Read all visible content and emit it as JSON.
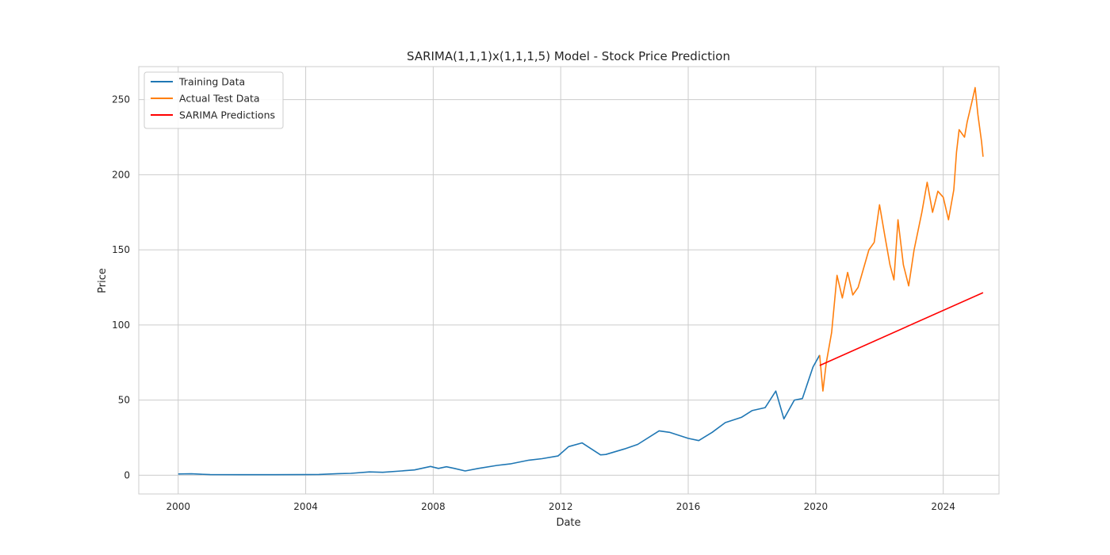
{
  "chart_data": {
    "type": "line",
    "title": "SARIMA(1,1,1)x(1,1,1,5) Model - Stock Price Prediction",
    "xlabel": "Date",
    "ylabel": "Price",
    "xlim": [
      "1998-10-06",
      "2025-10-01"
    ],
    "ylim": [
      -12.5,
      272
    ],
    "xticks": [
      "2000",
      "2004",
      "2008",
      "2012",
      "2016",
      "2020",
      "2024"
    ],
    "yticks": [
      "0",
      "50",
      "100",
      "150",
      "200",
      "250"
    ],
    "grid": true,
    "legend": "top-left",
    "series": [
      {
        "name": "Training Data",
        "color": "#1f77b4",
        "points": [
          [
            "2000-01-01",
            0.8
          ],
          [
            "2000-06-01",
            0.9
          ],
          [
            "2001-01-01",
            0.4
          ],
          [
            "2002-01-01",
            0.3
          ],
          [
            "2003-01-01",
            0.3
          ],
          [
            "2004-01-01",
            0.4
          ],
          [
            "2004-06-01",
            0.5
          ],
          [
            "2005-01-01",
            1.0
          ],
          [
            "2005-06-01",
            1.2
          ],
          [
            "2006-01-01",
            2.2
          ],
          [
            "2006-06-01",
            1.9
          ],
          [
            "2007-01-01",
            2.8
          ],
          [
            "2007-06-01",
            3.5
          ],
          [
            "2007-12-01",
            5.8
          ],
          [
            "2008-03-01",
            4.5
          ],
          [
            "2008-06-01",
            5.6
          ],
          [
            "2008-09-01",
            4.5
          ],
          [
            "2009-01-01",
            2.8
          ],
          [
            "2009-06-01",
            4.5
          ],
          [
            "2010-01-01",
            6.5
          ],
          [
            "2010-06-01",
            7.5
          ],
          [
            "2011-01-01",
            10.0
          ],
          [
            "2011-06-01",
            11.0
          ],
          [
            "2011-12-01",
            12.8
          ],
          [
            "2012-04-01",
            19.0
          ],
          [
            "2012-09-01",
            21.5
          ],
          [
            "2013-04-01",
            13.5
          ],
          [
            "2013-06-01",
            13.8
          ],
          [
            "2014-01-01",
            17.5
          ],
          [
            "2014-06-01",
            20.5
          ],
          [
            "2015-02-01",
            29.5
          ],
          [
            "2015-06-01",
            28.5
          ],
          [
            "2016-01-01",
            24.5
          ],
          [
            "2016-05-01",
            23.0
          ],
          [
            "2016-10-01",
            28.5
          ],
          [
            "2017-03-01",
            35.0
          ],
          [
            "2017-09-01",
            38.5
          ],
          [
            "2018-01-01",
            43.0
          ],
          [
            "2018-06-01",
            45.0
          ],
          [
            "2018-10-01",
            56.0
          ],
          [
            "2019-01-01",
            37.5
          ],
          [
            "2019-05-01",
            50.0
          ],
          [
            "2019-08-01",
            51.0
          ],
          [
            "2019-12-01",
            72.0
          ],
          [
            "2020-02-15",
            80.0
          ]
        ]
      },
      {
        "name": "Actual Test Data",
        "color": "#ff7f0e",
        "points": [
          [
            "2020-02-15",
            80.0
          ],
          [
            "2020-03-23",
            56.0
          ],
          [
            "2020-05-01",
            75.0
          ],
          [
            "2020-07-01",
            95.0
          ],
          [
            "2020-09-01",
            133.0
          ],
          [
            "2020-11-01",
            118.0
          ],
          [
            "2021-01-01",
            135.0
          ],
          [
            "2021-03-01",
            120.0
          ],
          [
            "2021-05-01",
            125.0
          ],
          [
            "2021-09-01",
            150.0
          ],
          [
            "2021-11-01",
            155.0
          ],
          [
            "2022-01-01",
            180.0
          ],
          [
            "2022-03-01",
            160.0
          ],
          [
            "2022-05-01",
            140.0
          ],
          [
            "2022-06-15",
            130.0
          ],
          [
            "2022-08-01",
            170.0
          ],
          [
            "2022-10-01",
            140.0
          ],
          [
            "2022-12-01",
            126.0
          ],
          [
            "2023-02-01",
            150.0
          ],
          [
            "2023-05-01",
            175.0
          ],
          [
            "2023-07-01",
            195.0
          ],
          [
            "2023-09-01",
            175.0
          ],
          [
            "2023-11-01",
            189.0
          ],
          [
            "2024-01-01",
            185.0
          ],
          [
            "2024-03-01",
            170.0
          ],
          [
            "2024-05-01",
            190.0
          ],
          [
            "2024-06-01",
            215.0
          ],
          [
            "2024-07-01",
            230.0
          ],
          [
            "2024-09-01",
            225.0
          ],
          [
            "2024-10-01",
            235.0
          ],
          [
            "2024-12-01",
            250.0
          ],
          [
            "2025-01-01",
            258.0
          ],
          [
            "2025-02-01",
            240.0
          ],
          [
            "2025-03-15",
            222.0
          ],
          [
            "2025-04-01",
            212.0
          ]
        ]
      },
      {
        "name": "SARIMA Predictions",
        "color": "#ff0000",
        "points": [
          [
            "2020-02-15",
            73.0
          ],
          [
            "2025-04-01",
            121.5
          ]
        ]
      }
    ]
  }
}
